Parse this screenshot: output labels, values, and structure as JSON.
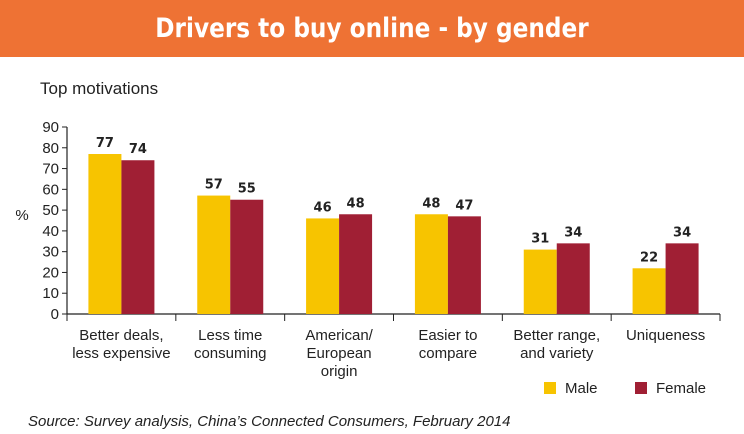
{
  "chart_data": {
    "type": "bar",
    "title": "Drivers to buy online - by gender",
    "subtitle": "Top motivations",
    "ylabel": "%",
    "xlabel": "",
    "ylim": [
      0,
      90
    ],
    "yticks": [
      0,
      10,
      20,
      30,
      40,
      50,
      60,
      70,
      80,
      90
    ],
    "grid": false,
    "legend_position": "bottom-right",
    "categories": [
      [
        "Better deals,",
        "less expensive"
      ],
      [
        "Less time",
        "consuming"
      ],
      [
        "American/",
        "European",
        "origin"
      ],
      [
        "Easier to",
        "compare"
      ],
      [
        "Better range,",
        "and variety"
      ],
      [
        "Uniqueness"
      ]
    ],
    "series": [
      {
        "name": "Male",
        "color": "#f7c400",
        "values": [
          77,
          57,
          46,
          48,
          31,
          22
        ]
      },
      {
        "name": "Female",
        "color": "#a01f34",
        "values": [
          74,
          55,
          48,
          47,
          34,
          34
        ]
      }
    ],
    "source": "Source: Survey analysis, China’s Connected Consumers, February 2014"
  },
  "colors": {
    "banner": "#ee7234",
    "axis": "#222222"
  }
}
